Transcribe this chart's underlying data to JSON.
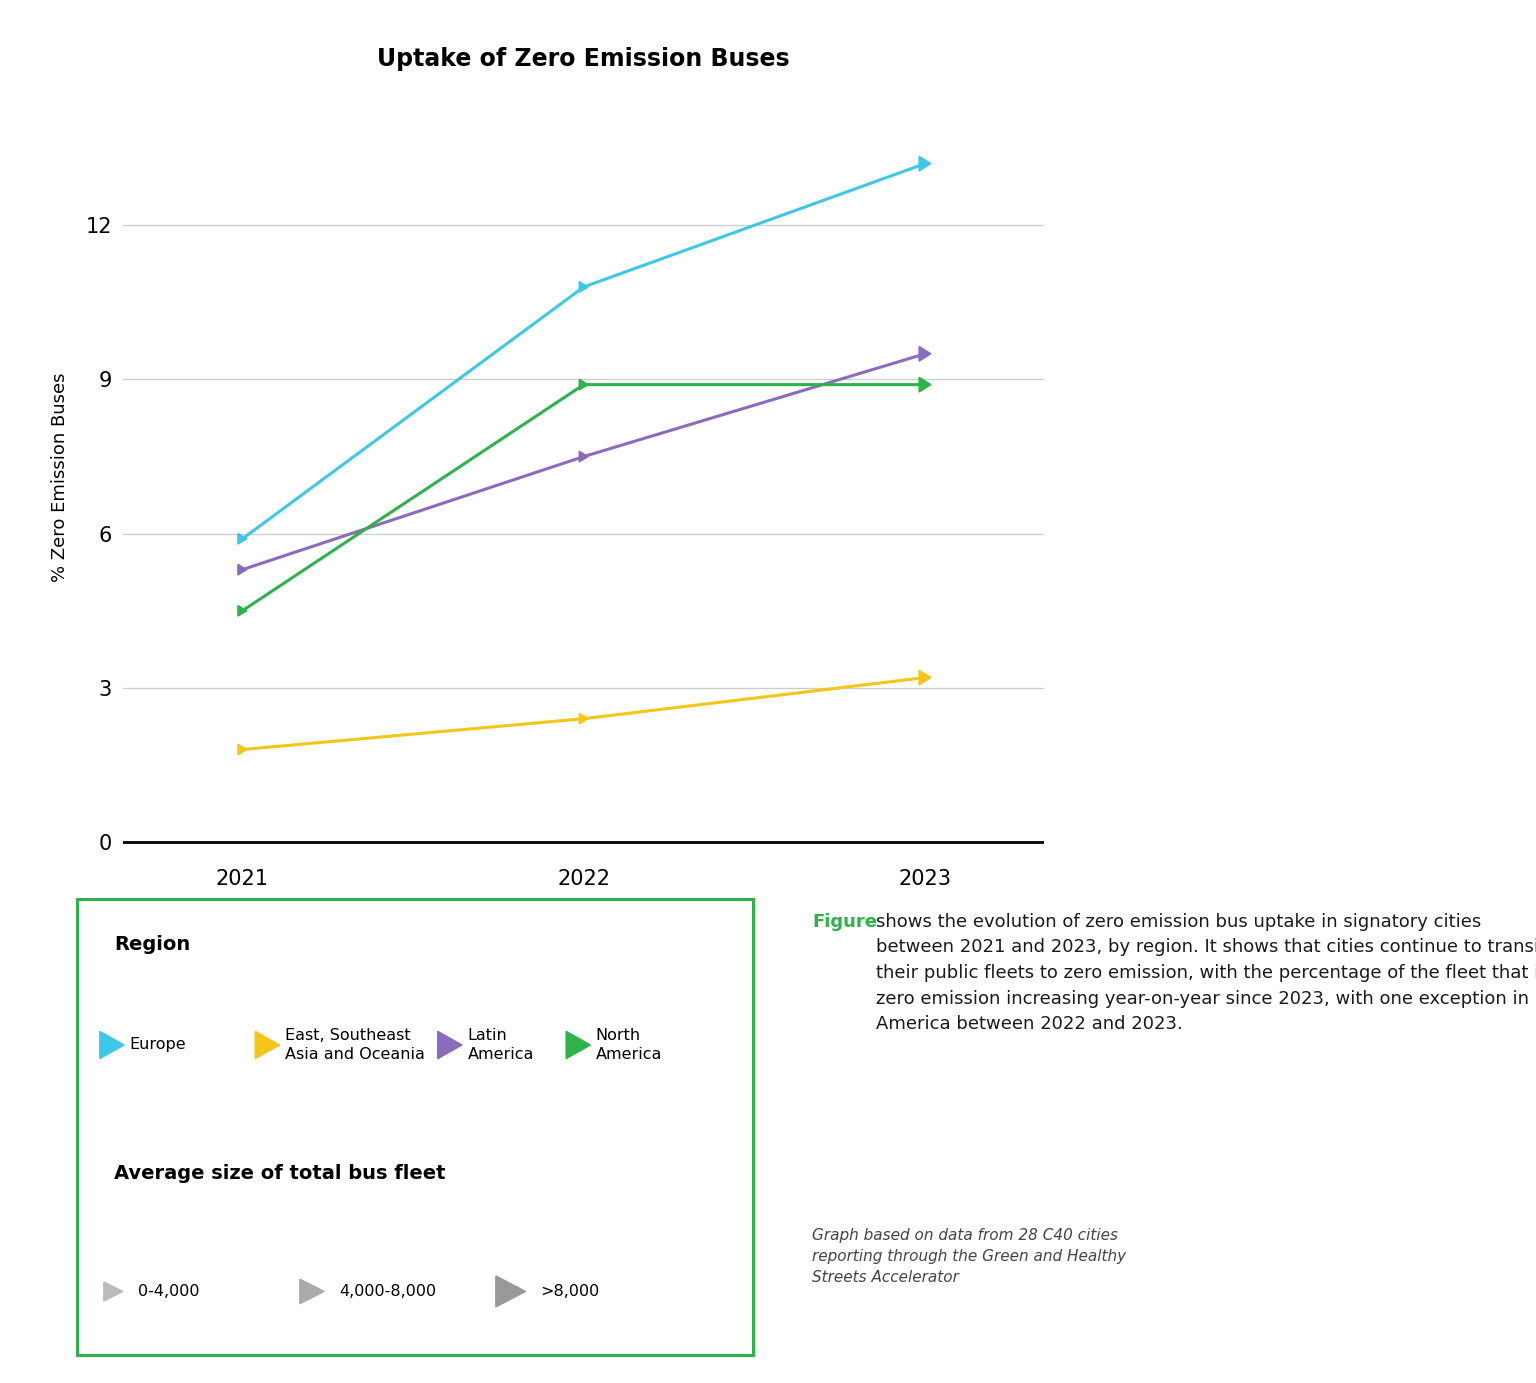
{
  "title": "Uptake of Zero Emission Buses",
  "ylabel": "% Zero Emission Buses",
  "years": [
    2021,
    2022,
    2023
  ],
  "series": [
    {
      "name": "Europe",
      "color": "#3EC8E8",
      "values": [
        5.9,
        10.8,
        13.2
      ]
    },
    {
      "name": "East, Southeast\nAsia and Oceania",
      "color": "#F5C518",
      "values": [
        1.8,
        2.4,
        3.2
      ]
    },
    {
      "name": "Latin\nAmerica",
      "color": "#8B6BBE",
      "values": [
        5.3,
        7.5,
        9.5
      ]
    },
    {
      "name": "North\nAmerica",
      "color": "#2DB34A",
      "values": [
        4.5,
        8.9,
        8.9
      ]
    }
  ],
  "yticks": [
    0,
    3,
    6,
    9,
    12
  ],
  "ylim": [
    -0.3,
    14.5
  ],
  "xlim": [
    -0.35,
    2.35
  ],
  "background_color": "#FFFFFF",
  "grid_color": "#CCCCCC",
  "legend_box_color": "#2DB34A",
  "annotation_figure_color": "#2DB34A",
  "legend_region_label": "Region",
  "legend_fleet_label": "Average size of total bus fleet",
  "fleet_sizes": [
    "0-4,000",
    "4,000-8,000",
    ">8,000"
  ],
  "fleet_marker_colors": [
    "#BBBBBB",
    "#AAAAAA",
    "#999999"
  ],
  "annotation_main": " shows the evolution of zero emission bus uptake in signatory cities between 2021 and 2023, by region. It shows that cities continue to transition their public fleets to zero emission, with the percentage of the fleet that is zero emission increasing year-on-year since 2023, with one exception in North America between 2022 and 2023.",
  "annotation_footer": "Graph based on data from 28 C40 cities\nreporting through the Green and Healthy\nStreets Accelerator"
}
